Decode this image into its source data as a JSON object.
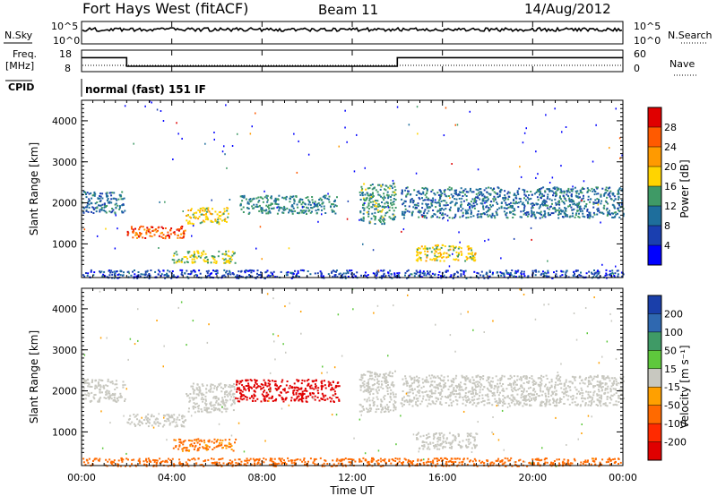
{
  "header": {
    "title": "Fort Hays West (fitACF)",
    "beam": "Beam 11",
    "date": "14/Aug/2012"
  },
  "aux_panels": {
    "nsky_label": "N.Sky",
    "nsearch_label": "N.Search",
    "freq_label_1": "Freq.",
    "freq_label_2": "[MHz]",
    "nave_label": "Nave",
    "cpid_label": "CPID",
    "noise_ticks": [
      "10^5",
      "10^0"
    ],
    "freq_ticks": [
      "18",
      "8"
    ],
    "nave_ticks": [
      "60",
      "0"
    ],
    "cpid_text": "normal (fast) 151 IF"
  },
  "axes": {
    "ylabel": "Slant Range [km]",
    "xlabel": "Time UT",
    "y_ticks": [
      "4000",
      "3000",
      "2000",
      "1000"
    ],
    "x_ticks": [
      "00:00",
      "04:00",
      "08:00",
      "12:00",
      "16:00",
      "20:00",
      "00:00"
    ]
  },
  "power_bar": {
    "label": "Power [dB]",
    "ticks": [
      "28",
      "24",
      "20",
      "16",
      "12",
      "8",
      "4"
    ],
    "colors": [
      "#e00000",
      "#ff5a00",
      "#ff9a00",
      "#ffd400",
      "#3f9a66",
      "#1e6e9c",
      "#1a3fb0",
      "#0000ff"
    ]
  },
  "velocity_bar": {
    "label": "Velocity [m s⁻¹]",
    "ticks": [
      "200",
      "100",
      "50",
      "15",
      "-15",
      "-50",
      "-100",
      "-200"
    ],
    "colors": [
      "#1a3faa",
      "#2f68b0",
      "#3f9a66",
      "#5ec83c",
      "#c8c8c0",
      "#ffa000",
      "#ff6a00",
      "#ff2a00",
      "#e00000"
    ]
  },
  "chart_data": {
    "type": "heatmap",
    "title": "Fort Hays West (fitACF)",
    "xlabel": "Time UT",
    "ylabel": "Slant Range [km]",
    "xlim": [
      0,
      24
    ],
    "ylim": [
      180,
      4500
    ],
    "freq_series": {
      "x": [
        0,
        2,
        2,
        14,
        14,
        24
      ],
      "values": [
        14.5,
        14.5,
        10.5,
        10.5,
        14.5,
        14.5
      ]
    },
    "power_segments": [
      {
        "t0": 0.0,
        "t1": 1.9,
        "r0": 1750,
        "r1": 2300,
        "value": 10
      },
      {
        "t0": 2.0,
        "t1": 4.6,
        "r0": 1150,
        "r1": 1450,
        "value": 26
      },
      {
        "t0": 4.6,
        "t1": 6.5,
        "r0": 1500,
        "r1": 1900,
        "value": 18
      },
      {
        "t0": 4.0,
        "t1": 6.8,
        "r0": 550,
        "r1": 850,
        "value": 16
      },
      {
        "t0": 7.0,
        "t1": 11.3,
        "r0": 1750,
        "r1": 2200,
        "value": 12
      },
      {
        "t0": 12.3,
        "t1": 13.9,
        "r0": 1500,
        "r1": 2500,
        "value": 13
      },
      {
        "t0": 14.1,
        "t1": 24.0,
        "r0": 1650,
        "r1": 2400,
        "value": 10
      },
      {
        "t0": 14.8,
        "t1": 17.5,
        "r0": 600,
        "r1": 1000,
        "value": 18
      },
      {
        "t0": 0.0,
        "t1": 24.0,
        "r0": 180,
        "r1": 380,
        "value": 6
      }
    ],
    "velocity_segments": [
      {
        "t0": 0.0,
        "t1": 1.9,
        "r0": 1750,
        "r1": 2300,
        "value": 0
      },
      {
        "t0": 2.0,
        "t1": 4.6,
        "r0": 1150,
        "r1": 1450,
        "value": 0
      },
      {
        "t0": 4.6,
        "t1": 6.8,
        "r0": 1500,
        "r1": 2200,
        "value": 0
      },
      {
        "t0": 6.8,
        "t1": 11.4,
        "r0": 1750,
        "r1": 2300,
        "value": -220
      },
      {
        "t0": 4.0,
        "t1": 6.8,
        "r0": 550,
        "r1": 850,
        "value": -60
      },
      {
        "t0": 12.3,
        "t1": 13.9,
        "r0": 1500,
        "r1": 2500,
        "value": 0
      },
      {
        "t0": 14.1,
        "t1": 24.0,
        "r0": 1650,
        "r1": 2400,
        "value": 0
      },
      {
        "t0": 14.8,
        "t1": 17.5,
        "r0": 600,
        "r1": 1000,
        "value": 0
      },
      {
        "t0": 0.0,
        "t1": 24.0,
        "r0": 180,
        "r1": 380,
        "value": -70
      }
    ]
  }
}
